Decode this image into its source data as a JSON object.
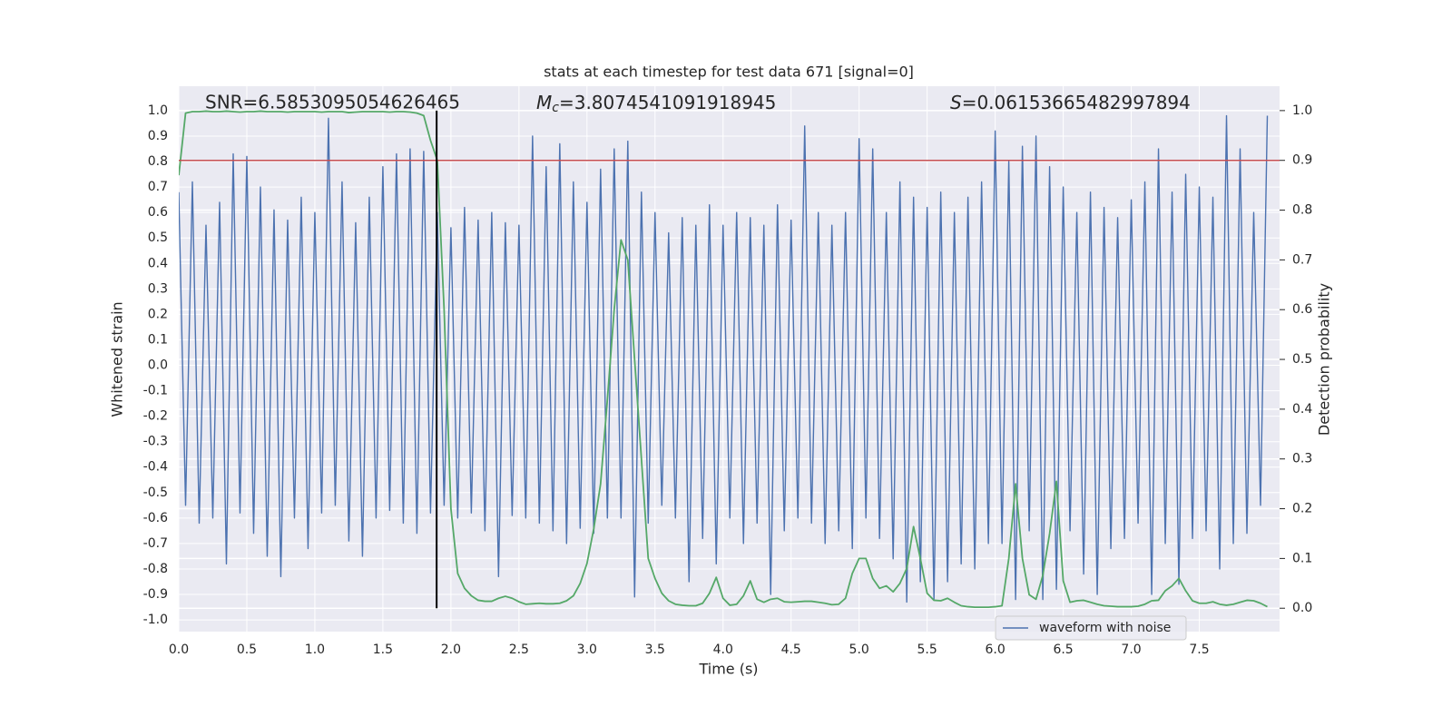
{
  "chart_data": {
    "type": "line",
    "title": "stats at each timestep for test data 671 [signal=0]",
    "xlabel": "Time (s)",
    "ylabel": "Whitened strain",
    "y2label": "Detection probability",
    "annotations": [
      {
        "text": "SNR=6.5853095054626465"
      },
      {
        "symbol": "M",
        "subscript": "c",
        "text": "=3.8074541091918945"
      },
      {
        "symbol": "S",
        "text": "=0.06153665482997894"
      }
    ],
    "x": [
      0,
      0.05,
      0.1,
      0.15,
      0.2,
      0.25,
      0.3,
      0.35,
      0.4,
      0.45,
      0.5,
      0.55,
      0.6,
      0.65,
      0.7,
      0.75,
      0.8,
      0.85,
      0.9,
      0.95,
      1.0,
      1.05,
      1.1,
      1.15,
      1.2,
      1.25,
      1.3,
      1.35,
      1.4,
      1.45,
      1.5,
      1.55,
      1.6,
      1.65,
      1.7,
      1.75,
      1.8,
      1.85,
      1.9,
      1.95,
      2.0,
      2.05,
      2.1,
      2.15,
      2.2,
      2.25,
      2.3,
      2.35,
      2.4,
      2.45,
      2.5,
      2.55,
      2.6,
      2.65,
      2.7,
      2.75,
      2.8,
      2.85,
      2.9,
      2.95,
      3.0,
      3.05,
      3.1,
      3.15,
      3.2,
      3.25,
      3.3,
      3.35,
      3.4,
      3.45,
      3.5,
      3.55,
      3.6,
      3.65,
      3.7,
      3.75,
      3.8,
      3.85,
      3.9,
      3.95,
      4.0,
      4.05,
      4.1,
      4.15,
      4.2,
      4.25,
      4.3,
      4.35,
      4.4,
      4.45,
      4.5,
      4.55,
      4.6,
      4.65,
      4.7,
      4.75,
      4.8,
      4.85,
      4.9,
      4.95,
      5.0,
      5.05,
      5.1,
      5.15,
      5.2,
      5.25,
      5.3,
      5.35,
      5.4,
      5.45,
      5.5,
      5.55,
      5.6,
      5.65,
      5.7,
      5.75,
      5.8,
      5.85,
      5.9,
      5.95,
      6.0,
      6.05,
      6.1,
      6.15,
      6.2,
      6.25,
      6.3,
      6.35,
      6.4,
      6.45,
      6.5,
      6.55,
      6.6,
      6.65,
      6.7,
      6.75,
      6.8,
      6.85,
      6.9,
      6.95,
      7.0,
      7.05,
      7.1,
      7.15,
      7.2,
      7.25,
      7.3,
      7.35,
      7.4,
      7.45,
      7.5,
      7.55,
      7.6,
      7.65,
      7.7,
      7.75,
      7.8,
      7.85,
      7.9,
      7.95,
      8.0
    ],
    "series": [
      {
        "name": "waveform with noise",
        "color": "#4c72b0",
        "axis": "y",
        "values": [
          0.68,
          -0.55,
          0.72,
          -0.62,
          0.55,
          -0.6,
          0.64,
          -0.78,
          0.83,
          -0.58,
          0.82,
          -0.66,
          0.7,
          -0.75,
          0.61,
          -0.83,
          0.57,
          -0.6,
          0.66,
          -0.72,
          0.6,
          -0.58,
          0.97,
          -0.55,
          0.72,
          -0.69,
          0.56,
          -0.75,
          0.66,
          -0.6,
          0.78,
          -0.57,
          0.83,
          -0.62,
          0.85,
          -0.66,
          0.84,
          -0.58,
          0.6,
          -0.55,
          0.54,
          -0.6,
          0.62,
          -0.58,
          0.57,
          -0.65,
          0.6,
          -0.83,
          0.56,
          -0.59,
          0.55,
          -0.6,
          0.9,
          -0.62,
          0.78,
          -0.65,
          0.87,
          -0.7,
          0.72,
          -0.64,
          0.64,
          -0.66,
          0.77,
          -0.6,
          0.85,
          -0.6,
          0.88,
          -0.91,
          0.68,
          -0.62,
          0.6,
          -0.55,
          0.52,
          -0.6,
          0.58,
          -0.85,
          0.55,
          -0.68,
          0.63,
          -0.78,
          0.55,
          -0.6,
          0.6,
          -0.7,
          0.58,
          -0.62,
          0.55,
          -0.9,
          0.63,
          -0.65,
          0.57,
          -0.6,
          0.94,
          -0.62,
          0.6,
          -0.7,
          0.55,
          -0.65,
          0.6,
          -0.72,
          0.89,
          -0.6,
          0.85,
          -0.68,
          0.6,
          -0.76,
          0.72,
          -0.93,
          0.66,
          -0.85,
          0.62,
          -0.92,
          0.68,
          -0.85,
          0.6,
          -0.78,
          0.66,
          -0.8,
          0.72,
          -0.7,
          0.92,
          -0.7,
          0.8,
          -0.92,
          0.86,
          -0.65,
          0.9,
          -0.92,
          0.78,
          -0.88,
          0.7,
          -0.65,
          0.6,
          -0.82,
          0.68,
          -0.9,
          0.62,
          -0.72,
          0.58,
          -0.68,
          0.65,
          -0.62,
          0.72,
          -0.9,
          0.85,
          -0.7,
          0.68,
          -0.86,
          0.75,
          -0.68,
          0.7,
          -0.65,
          0.66,
          -0.8,
          0.98,
          -0.7,
          0.85,
          -0.66,
          0.6,
          -0.55,
          0.98
        ]
      },
      {
        "color": "#55a868",
        "axis": "y2",
        "values": [
          0.87,
          0.995,
          0.998,
          0.998,
          0.999,
          0.998,
          0.998,
          0.999,
          0.998,
          0.997,
          0.998,
          0.998,
          0.999,
          0.998,
          0.998,
          0.998,
          0.997,
          0.998,
          0.998,
          0.998,
          0.998,
          0.997,
          0.998,
          0.998,
          0.998,
          0.996,
          0.997,
          0.998,
          0.998,
          0.998,
          0.998,
          0.997,
          0.998,
          0.998,
          0.997,
          0.995,
          0.99,
          0.94,
          0.9,
          0.6,
          0.2,
          0.07,
          0.04,
          0.025,
          0.016,
          0.014,
          0.014,
          0.02,
          0.024,
          0.02,
          0.013,
          0.008,
          0.009,
          0.01,
          0.009,
          0.009,
          0.01,
          0.015,
          0.025,
          0.05,
          0.09,
          0.16,
          0.25,
          0.42,
          0.6,
          0.74,
          0.7,
          0.5,
          0.3,
          0.1,
          0.06,
          0.03,
          0.015,
          0.008,
          0.006,
          0.005,
          0.005,
          0.01,
          0.03,
          0.062,
          0.02,
          0.006,
          0.008,
          0.025,
          0.055,
          0.018,
          0.012,
          0.018,
          0.02,
          0.013,
          0.012,
          0.013,
          0.014,
          0.014,
          0.012,
          0.01,
          0.007,
          0.008,
          0.02,
          0.07,
          0.1,
          0.1,
          0.06,
          0.04,
          0.045,
          0.033,
          0.05,
          0.08,
          0.164,
          0.1,
          0.03,
          0.016,
          0.015,
          0.02,
          0.012,
          0.005,
          0.003,
          0.002,
          0.002,
          0.002,
          0.003,
          0.005,
          0.1,
          0.25,
          0.1,
          0.027,
          0.018,
          0.066,
          0.15,
          0.255,
          0.055,
          0.012,
          0.015,
          0.016,
          0.012,
          0.008,
          0.005,
          0.004,
          0.003,
          0.003,
          0.003,
          0.004,
          0.008,
          0.015,
          0.016,
          0.035,
          0.045,
          0.06,
          0.035,
          0.015,
          0.01,
          0.01,
          0.013,
          0.008,
          0.006,
          0.008,
          0.012,
          0.016,
          0.015,
          0.01,
          0.003
        ]
      }
    ],
    "threshold": {
      "value": 0.9,
      "axis": "y2",
      "color": "#c44e52"
    },
    "marker_x": {
      "value": 1.895,
      "color": "#000000"
    },
    "xlim": [
      0,
      8.09
    ],
    "ylim": [
      -1.046,
      1.096
    ],
    "y2lim": [
      -0.047,
      1.049
    ],
    "xticks": [
      {
        "value": 0,
        "label": "0.0"
      },
      0.5,
      {
        "value": 1,
        "label": "1.0"
      },
      1.5,
      {
        "value": 2,
        "label": "2.0"
      },
      2.5,
      {
        "value": 3,
        "label": "3.0"
      },
      3.5,
      {
        "value": 4,
        "label": "4.0"
      },
      4.5,
      {
        "value": 5,
        "label": "5.0"
      },
      5.5,
      {
        "value": 6,
        "label": "6.0"
      },
      6.5,
      {
        "value": 7,
        "label": "7.0"
      },
      7.5
    ],
    "yticks": [
      {
        "value": -1,
        "label": "-1.0"
      },
      -0.9,
      -0.8,
      -0.7,
      -0.6,
      -0.5,
      -0.4,
      -0.3,
      -0.2,
      -0.1,
      {
        "value": 0,
        "label": "0.0"
      },
      0.1,
      0.2,
      0.3,
      0.4,
      0.5,
      0.6,
      0.7,
      0.8,
      0.9,
      {
        "value": 1,
        "label": "1.0"
      }
    ],
    "y2ticks": [
      {
        "value": 0,
        "label": "0.0"
      },
      0.1,
      0.2,
      0.3,
      0.4,
      0.5,
      0.6,
      0.7,
      0.8,
      0.9,
      {
        "value": 1,
        "label": "1.0"
      }
    ],
    "grid": true,
    "background": "#eaeaf2",
    "legend_loc": "lower right"
  }
}
